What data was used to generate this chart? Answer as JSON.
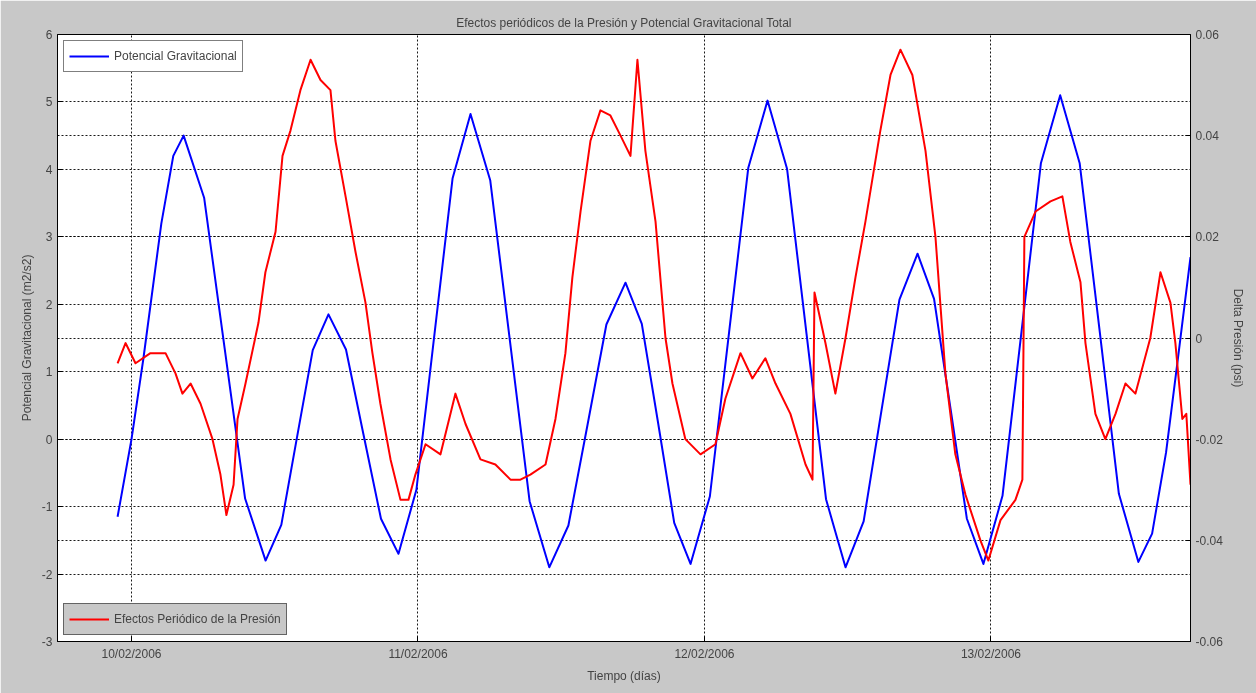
{
  "chart_data": {
    "type": "line",
    "title": "Efectos periódicos de la Presión y Potencial Gravitacional Total",
    "xlabel": "Tiempo (días)",
    "ylabel": "Potencial Gravitacional (m2/s2)",
    "y2label": "Delta Presión (psi)",
    "xlim": [
      "2006-02-09T17:48",
      "2006-02-13T16:43"
    ],
    "xticks": [
      {
        "value": "2006-02-10",
        "label": "10/02/2006"
      },
      {
        "value": "2006-02-11",
        "label": "11/02/2006"
      },
      {
        "value": "2006-02-12",
        "label": "12/02/2006"
      },
      {
        "value": "2006-02-13",
        "label": "13/02/2006"
      }
    ],
    "ylim": [
      -3,
      6
    ],
    "yticks": [
      -3,
      -2,
      -1,
      0,
      1,
      2,
      3,
      4,
      5,
      6
    ],
    "y2lim": [
      -0.06,
      0.06
    ],
    "y2ticks": [
      -0.06,
      -0.04,
      -0.02,
      0,
      0.02,
      0.04,
      0.06
    ],
    "grid": true,
    "legend": "top left",
    "line_style": "solid",
    "marker": "none",
    "series": [
      {
        "name": "Potencial Gravitacional",
        "color": "#0000ff",
        "x": [
          "2006-02-09T22:50",
          "2006-02-10T00:00",
          "2006-02-10T01:00",
          "2006-02-10T02:30",
          "2006-02-10T03:30",
          "2006-02-10T04:22",
          "2006-02-10T06:05",
          "2006-02-10T07:48",
          "2006-02-10T09:31",
          "2006-02-10T11:14",
          "2006-02-10T12:33",
          "2006-02-10T13:52",
          "2006-02-10T15:11",
          "2006-02-10T16:30",
          "2006-02-10T17:58",
          "2006-02-10T19:26",
          "2006-02-10T20:54",
          "2006-02-10T22:22",
          "2006-02-10T23:52",
          "2006-02-11T01:23",
          "2006-02-11T02:54",
          "2006-02-11T04:24",
          "2006-02-11T06:03",
          "2006-02-11T07:42",
          "2006-02-11T09:21",
          "2006-02-11T11:00",
          "2006-02-11T12:36",
          "2006-02-11T14:12",
          "2006-02-11T15:47",
          "2006-02-11T17:23",
          "2006-02-11T18:45",
          "2006-02-11T20:07",
          "2006-02-11T21:28",
          "2006-02-11T22:50",
          "2006-02-12T00:27",
          "2006-02-12T02:04",
          "2006-02-12T03:40",
          "2006-02-12T05:17",
          "2006-02-12T06:55",
          "2006-02-12T08:33",
          "2006-02-12T10:11",
          "2006-02-12T11:49",
          "2006-02-12T13:20",
          "2006-02-12T14:50",
          "2006-02-12T16:20",
          "2006-02-12T17:51",
          "2006-02-12T19:14",
          "2006-02-12T20:37",
          "2006-02-12T21:59",
          "2006-02-12T23:22",
          "2006-02-13T00:58",
          "2006-02-13T02:35",
          "2006-02-13T04:11",
          "2006-02-13T05:48",
          "2006-02-13T07:26",
          "2006-02-13T09:05",
          "2006-02-13T10:43",
          "2006-02-13T12:21",
          "2006-02-13T13:30",
          "2006-02-13T14:40",
          "2006-02-13T15:40",
          "2006-02-13T16:43"
        ],
        "values": [
          -1.15,
          0.0,
          1.2,
          3.2,
          4.2,
          4.5,
          3.58,
          1.35,
          -0.88,
          -1.8,
          -1.27,
          0.03,
          1.32,
          1.85,
          1.33,
          0.07,
          -1.18,
          -1.7,
          -0.75,
          1.56,
          3.87,
          4.82,
          3.84,
          1.46,
          -0.92,
          -1.9,
          -1.28,
          0.21,
          1.7,
          2.32,
          1.71,
          0.24,
          -1.24,
          -1.85,
          -0.85,
          1.59,
          4.02,
          5.02,
          4.01,
          1.56,
          -0.89,
          -1.9,
          -1.22,
          0.43,
          2.07,
          2.75,
          2.08,
          0.45,
          -1.18,
          -1.85,
          -0.84,
          1.63,
          4.09,
          5.1,
          4.09,
          1.64,
          -0.81,
          -1.82,
          -1.4,
          -0.2,
          1.2,
          2.7
        ]
      },
      {
        "name": "Efectos Periódico de la Presión",
        "color": "#ff0000",
        "axis": "y2",
        "x": [
          "2006-02-09T22:50",
          "2006-02-09T23:30",
          "2006-02-10T00:20",
          "2006-02-10T01:35",
          "2006-02-10T02:51",
          "2006-02-10T03:41",
          "2006-02-10T04:16",
          "2006-02-10T04:57",
          "2006-02-10T05:47",
          "2006-02-10T06:47",
          "2006-02-10T07:27",
          "2006-02-10T07:57",
          "2006-02-10T08:33",
          "2006-02-10T08:53",
          "2006-02-10T09:33",
          "2006-02-10T10:38",
          "2006-02-10T11:13",
          "2006-02-10T12:04",
          "2006-02-10T12:39",
          "2006-02-10T13:19",
          "2006-02-10T14:09",
          "2006-02-10T15:00",
          "2006-02-10T15:50",
          "2006-02-10T16:40",
          "2006-02-10T17:05",
          "2006-02-10T17:56",
          "2006-02-10T18:46",
          "2006-02-10T19:36",
          "2006-02-10T20:11",
          "2006-02-10T20:51",
          "2006-02-10T21:42",
          "2006-02-10T22:32",
          "2006-02-10T23:12",
          "2006-02-10T23:47",
          "2006-02-11T00:38",
          "2006-02-11T01:53",
          "2006-02-11T03:08",
          "2006-02-11T03:59",
          "2006-02-11T05:14",
          "2006-02-11T06:29",
          "2006-02-11T07:45",
          "2006-02-11T08:35",
          "2006-02-11T09:25",
          "2006-02-11T10:41",
          "2006-02-11T11:31",
          "2006-02-11T12:21",
          "2006-02-11T12:56",
          "2006-02-11T13:37",
          "2006-02-11T14:27",
          "2006-02-11T15:17",
          "2006-02-11T16:07",
          "2006-02-11T16:58",
          "2006-02-11T17:48",
          "2006-02-11T18:23",
          "2006-02-11T19:03",
          "2006-02-11T19:54",
          "2006-02-11T20:44",
          "2006-02-11T21:19",
          "2006-02-11T22:24",
          "2006-02-11T23:40",
          "2006-02-12T00:55",
          "2006-02-12T01:45",
          "2006-02-12T03:01",
          "2006-02-12T04:01",
          "2006-02-12T05:06",
          "2006-02-12T05:57",
          "2006-02-12T07:12",
          "2006-02-12T08:28",
          "2006-02-12T09:03",
          "2006-02-12T09:13",
          "2006-02-12T10:08",
          "2006-02-12T10:58",
          "2006-02-12T11:49",
          "2006-02-12T12:39",
          "2006-02-12T13:29",
          "2006-02-12T14:44",
          "2006-02-12T15:35",
          "2006-02-12T16:25",
          "2006-02-12T17:25",
          "2006-02-12T18:31",
          "2006-02-12T19:21",
          "2006-02-12T20:11",
          "2006-02-12T21:01",
          "2006-02-12T21:52",
          "2006-02-12T23:07",
          "2006-02-12T23:47",
          "2006-02-13T00:48",
          "2006-02-13T02:03",
          "2006-02-13T02:38",
          "2006-02-13T02:48",
          "2006-02-13T03:44",
          "2006-02-13T04:59",
          "2006-02-13T05:59",
          "2006-02-13T06:39",
          "2006-02-13T07:30",
          "2006-02-13T07:55",
          "2006-02-13T08:45",
          "2006-02-13T09:35",
          "2006-02-13T10:26",
          "2006-02-13T11:16",
          "2006-02-13T12:06",
          "2006-02-13T13:21",
          "2006-02-13T14:12",
          "2006-02-13T15:02",
          "2006-02-13T15:27",
          "2006-02-13T16:02",
          "2006-02-13T16:22",
          "2006-02-13T16:43"
        ],
        "values": [
          -0.005,
          -0.001,
          -0.005,
          -0.003,
          -0.003,
          -0.007,
          -0.011,
          -0.009,
          -0.013,
          -0.02,
          -0.027,
          -0.035,
          -0.029,
          -0.016,
          -0.009,
          0.003,
          0.013,
          0.021,
          0.036,
          0.041,
          0.049,
          0.055,
          0.051,
          0.049,
          0.039,
          0.028,
          0.017,
          0.007,
          -0.003,
          -0.013,
          -0.024,
          -0.032,
          -0.032,
          -0.027,
          -0.021,
          -0.023,
          -0.011,
          -0.017,
          -0.024,
          -0.025,
          -0.028,
          -0.028,
          -0.027,
          -0.025,
          -0.016,
          -0.003,
          0.012,
          0.025,
          0.039,
          0.045,
          0.044,
          0.04,
          0.036,
          0.055,
          0.037,
          0.023,
          0.0,
          -0.009,
          -0.02,
          -0.023,
          -0.021,
          -0.012,
          -0.003,
          -0.008,
          -0.004,
          -0.009,
          -0.015,
          -0.025,
          -0.028,
          0.009,
          -0.001,
          -0.011,
          0.0,
          0.012,
          0.023,
          0.041,
          0.052,
          0.057,
          0.052,
          0.037,
          0.02,
          -0.007,
          -0.023,
          -0.031,
          -0.04,
          -0.044,
          -0.036,
          -0.032,
          -0.028,
          0.02,
          0.025,
          0.027,
          0.028,
          0.019,
          0.011,
          -0.001,
          -0.015,
          -0.02,
          -0.015,
          -0.009,
          -0.011,
          0.0,
          0.013,
          0.007,
          -0.001,
          -0.016,
          -0.015,
          -0.029
        ]
      }
    ]
  }
}
